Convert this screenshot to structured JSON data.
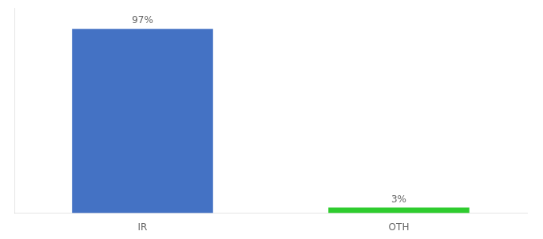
{
  "chart_data": {
    "type": "bar",
    "categories": [
      "IR",
      "OTH"
    ],
    "values": [
      97,
      3
    ],
    "value_labels": [
      "97%",
      "3%"
    ],
    "colors": [
      "#4472c4",
      "#2ecc2e"
    ],
    "ylim": [
      0,
      108
    ],
    "yticks": [],
    "grid": false,
    "data_labels": true,
    "tick_labels": "x"
  }
}
